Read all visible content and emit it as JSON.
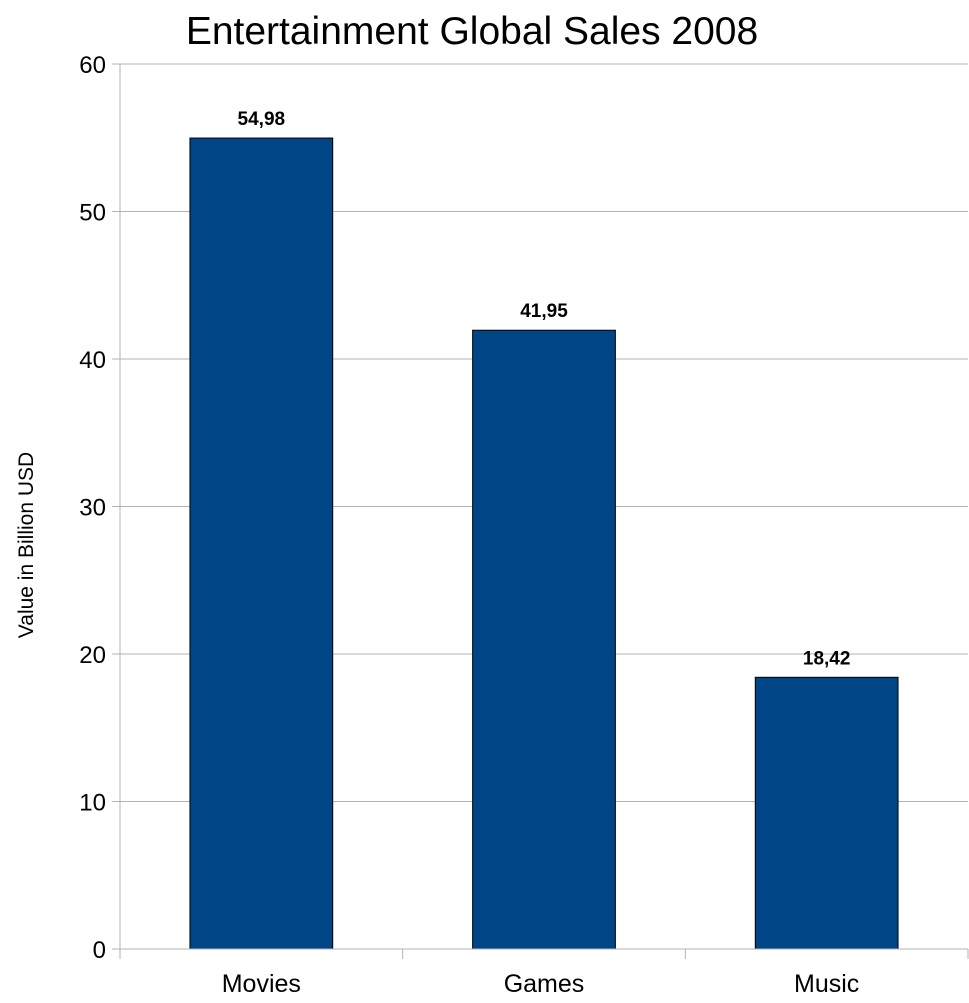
{
  "chart_data": {
    "type": "bar",
    "title": "Entertainment Global Sales 2008",
    "xlabel": "",
    "ylabel": "Value in Billion USD",
    "categories": [
      "Movies",
      "Games",
      "Music"
    ],
    "values": [
      54.98,
      41.95,
      18.42
    ],
    "value_labels": [
      "54,98",
      "41,95",
      "18,42"
    ],
    "ylim": [
      0,
      60
    ],
    "yticks": [
      0,
      10,
      20,
      30,
      40,
      50,
      60
    ],
    "grid": true,
    "legend": "none",
    "colors": {
      "bar": "#004586",
      "grid": "#b3b3b3",
      "axis": "#b3b3b3"
    }
  }
}
